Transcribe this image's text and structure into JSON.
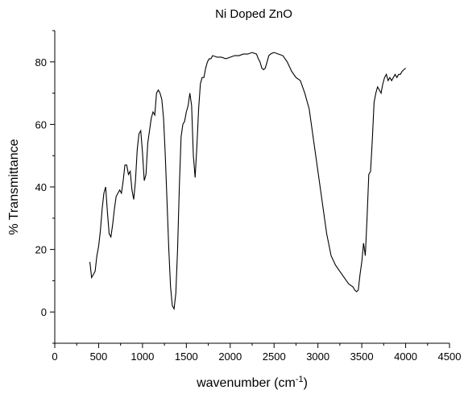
{
  "chart_data": {
    "type": "line",
    "title": "Ni Doped ZnO",
    "xlabel_main": "wavenumber (cm",
    "xlabel_sup": "-1",
    "xlabel_close": ")",
    "ylabel": "% Transmittance",
    "xlim": [
      0,
      4500
    ],
    "ylim": [
      -10,
      90
    ],
    "xticks": [
      0,
      500,
      1000,
      1500,
      2000,
      2500,
      3000,
      3500,
      4000,
      4500
    ],
    "yticks": [
      0,
      20,
      40,
      60,
      80
    ],
    "grid": false,
    "line_color": "#000000",
    "series": [
      {
        "x": [
          400,
          420,
          440,
          460,
          480,
          500,
          520,
          540,
          560,
          580,
          600,
          620,
          640,
          660,
          680,
          700,
          720,
          740,
          760,
          780,
          800,
          820,
          840,
          860,
          880,
          900,
          920,
          940,
          960,
          980,
          1000,
          1020,
          1040,
          1060,
          1080,
          1100,
          1120,
          1140,
          1160,
          1180,
          1200,
          1220,
          1240,
          1260,
          1280,
          1300,
          1320,
          1340,
          1360,
          1380,
          1400,
          1420,
          1440,
          1460,
          1480,
          1500,
          1520,
          1540,
          1560,
          1580,
          1600,
          1620,
          1640,
          1660,
          1680,
          1700,
          1720,
          1740,
          1760,
          1780,
          1800,
          1850,
          1900,
          1950,
          2000,
          2050,
          2100,
          2150,
          2200,
          2250,
          2300,
          2320,
          2340,
          2360,
          2380,
          2400,
          2420,
          2440,
          2460,
          2480,
          2500,
          2550,
          2600,
          2650,
          2700,
          2750,
          2800,
          2850,
          2900,
          2950,
          3000,
          3050,
          3100,
          3150,
          3200,
          3250,
          3300,
          3350,
          3400,
          3420,
          3440,
          3460,
          3480,
          3500,
          3520,
          3540,
          3560,
          3580,
          3600,
          3620,
          3640,
          3660,
          3680,
          3700,
          3720,
          3740,
          3760,
          3780,
          3800,
          3820,
          3840,
          3860,
          3880,
          3900,
          3920,
          3940,
          3960,
          3980,
          4000
        ],
        "y": [
          16,
          11,
          12,
          13,
          18,
          21,
          26,
          33,
          38,
          40,
          32,
          25,
          24,
          28,
          33,
          37,
          38,
          39,
          38,
          42,
          47,
          47,
          44,
          45,
          39,
          36,
          42,
          52,
          57,
          58,
          51,
          42,
          44,
          54,
          58,
          62,
          64,
          63,
          70,
          71,
          70,
          68,
          62,
          50,
          35,
          20,
          8,
          2,
          1,
          6,
          20,
          40,
          56,
          60,
          61,
          64,
          66,
          70,
          66,
          50,
          43,
          53,
          65,
          73,
          75,
          75,
          78,
          80,
          81,
          81,
          82,
          81.5,
          81.5,
          81,
          81.5,
          82,
          82,
          82.5,
          82.5,
          83,
          82.5,
          81,
          80,
          78,
          77.5,
          78,
          80,
          82,
          82.5,
          82.8,
          83,
          82.5,
          82,
          80,
          77,
          75,
          74,
          70,
          65,
          55,
          45,
          35,
          25,
          18,
          15,
          13,
          11,
          9,
          8,
          7,
          6.5,
          7,
          12,
          16,
          22,
          18,
          30,
          44,
          45,
          55,
          67,
          70,
          72,
          71,
          70,
          73,
          75,
          76,
          74,
          75,
          74,
          75,
          76,
          75,
          76,
          76,
          77,
          77.5,
          78
        ]
      }
    ]
  }
}
